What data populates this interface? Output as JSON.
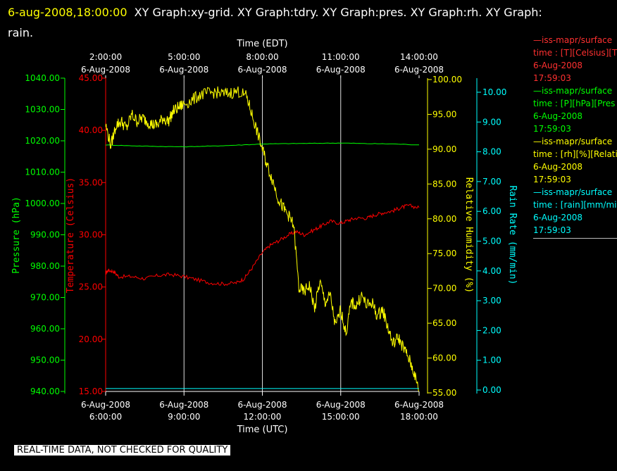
{
  "header": {
    "date": "6-aug-2008,18:00:00",
    "graphs_line1": "XY Graph:xy-grid.  XY Graph:tdry.  XY Graph:pres.  XY Graph:rh.  XY Graph:",
    "graphs_line2": "rain."
  },
  "notice": "REAL-TIME DATA, NOT CHECKED FOR QUALITY",
  "colors": {
    "temperature": "#ff0000",
    "pressure": "#00ff00",
    "humidity": "#ffff00",
    "rain": "#00ffff",
    "grid": "#dddddd"
  },
  "legend": [
    {
      "color": "#ff3030",
      "rule": "—iss-mapr/surface",
      "field": "time : [T][Celsius][T",
      "date": "6-Aug-2008",
      "time": "17:59:03"
    },
    {
      "color": "#00ff00",
      "rule": "—iss-mapr/surface",
      "field": "time : [P][hPa][Pres",
      "date": "6-Aug-2008",
      "time": "17:59:03"
    },
    {
      "color": "#ffff00",
      "rule": "—iss-mapr/surface",
      "field": "time : [rh][%][Relati",
      "date": "6-Aug-2008",
      "time": "17:59:03"
    },
    {
      "color": "#00ffff",
      "rule": "—iss-mapr/surface",
      "field": "time : [rain][mm/min",
      "date": "6-Aug-2008",
      "time": "17:59:03"
    }
  ],
  "chart_data": {
    "type": "line",
    "x_top": {
      "label": "Time (EDT)",
      "ticks": [
        {
          "time": "2:00:00",
          "date": "6-Aug-2008"
        },
        {
          "time": "5:00:00",
          "date": "6-Aug-2008"
        },
        {
          "time": "8:00:00",
          "date": "6-Aug-2008"
        },
        {
          "time": "11:00:00",
          "date": "6-Aug-2008"
        },
        {
          "time": "14:00:00",
          "date": "6-Aug-2008"
        }
      ]
    },
    "x_bottom": {
      "label": "Time (UTC)",
      "range_hours": [
        6,
        18
      ],
      "ticks": [
        {
          "date": "6-Aug-2008",
          "time": "6:00:00"
        },
        {
          "date": "6-Aug-2008",
          "time": "9:00:00"
        },
        {
          "date": "6-Aug-2008",
          "time": "12:00:00"
        },
        {
          "date": "6-Aug-2008",
          "time": "15:00:00"
        },
        {
          "date": "6-Aug-2008",
          "time": "18:00:00"
        }
      ]
    },
    "axes": {
      "pressure": {
        "label": "Pressure (hPa)",
        "ylim": [
          940,
          1040
        ],
        "ticks": [
          "940.00",
          "950.00",
          "960.00",
          "970.00",
          "980.00",
          "990.00",
          "1000.00",
          "1010.00",
          "1020.00",
          "1030.00",
          "1040.00"
        ]
      },
      "temperature": {
        "label": "Temperature (Celsius)",
        "ylim": [
          15,
          45
        ],
        "ticks": [
          "15.00",
          "20.00",
          "25.00",
          "30.00",
          "35.00",
          "40.00",
          "45.00"
        ]
      },
      "humidity": {
        "label": "Relative Humidity (%)",
        "ylim": [
          55,
          100
        ],
        "ticks": [
          "55.00",
          "60.00",
          "65.00",
          "70.00",
          "75.00",
          "80.00",
          "85.00",
          "90.00",
          "95.00",
          "100.00"
        ]
      },
      "rain": {
        "label": "Rain Rate (mm/min)",
        "ylim": [
          0,
          10
        ],
        "ticks": [
          "0.00",
          "1.00",
          "2.00",
          "3.00",
          "4.00",
          "5.00",
          "6.00",
          "7.00",
          "8.00",
          "9.00",
          "10.00"
        ]
      }
    },
    "grid": true,
    "series": [
      {
        "axis": "temperature",
        "x": [
          6.0,
          6.1,
          6.3,
          6.5,
          7.0,
          7.5,
          8.0,
          8.5,
          9.0,
          9.5,
          10.0,
          10.5,
          11.0,
          11.3,
          11.6,
          12.0,
          12.3,
          12.6,
          13.0,
          13.3,
          13.6,
          14.0,
          14.3,
          14.6,
          15.0,
          15.3,
          15.6,
          16.0,
          16.3,
          16.6,
          17.0,
          17.3,
          17.6,
          18.0
        ],
        "y": [
          26.3,
          26.6,
          26.5,
          26.0,
          26.0,
          25.8,
          26.1,
          26.2,
          26.0,
          25.7,
          25.4,
          25.3,
          25.4,
          25.8,
          26.8,
          28.3,
          29.0,
          29.4,
          30.0,
          30.3,
          30.0,
          30.5,
          30.9,
          31.3,
          31.1,
          31.4,
          31.6,
          31.6,
          31.9,
          32.1,
          32.3,
          32.6,
          32.8,
          32.6
        ]
      },
      {
        "axis": "pressure",
        "x": [
          6.0,
          7.0,
          8.0,
          9.0,
          10.0,
          11.0,
          12.0,
          13.0,
          14.0,
          15.0,
          16.0,
          17.0,
          18.0
        ],
        "y": [
          1018.7,
          1018.4,
          1018.2,
          1018.1,
          1018.3,
          1018.6,
          1019.0,
          1019.1,
          1019.2,
          1019.3,
          1019.1,
          1019.0,
          1018.7
        ]
      },
      {
        "axis": "humidity",
        "x": [
          6.0,
          6.2,
          6.4,
          6.6,
          6.8,
          7.0,
          7.2,
          7.4,
          7.6,
          7.8,
          8.0,
          8.2,
          8.4,
          8.6,
          8.8,
          9.0,
          9.3,
          9.6,
          9.9,
          10.2,
          10.5,
          10.8,
          11.1,
          11.4,
          11.6,
          11.8,
          12.0,
          12.2,
          12.4,
          12.6,
          12.8,
          13.0,
          13.2,
          13.4,
          13.6,
          13.8,
          14.0,
          14.2,
          14.4,
          14.6,
          14.8,
          15.0,
          15.2,
          15.4,
          15.6,
          15.8,
          16.0,
          16.2,
          16.4,
          16.6,
          16.8,
          17.0,
          17.2,
          17.4,
          17.6,
          17.8,
          18.0
        ],
        "y": [
          93.5,
          90.5,
          93.5,
          94.0,
          93.0,
          95.0,
          94.0,
          94.5,
          94.0,
          93.5,
          93.5,
          94.5,
          94.0,
          95.5,
          96.0,
          96.5,
          97.0,
          97.8,
          98.0,
          98.2,
          97.9,
          98.1,
          98.3,
          97.5,
          95.0,
          92.5,
          90.0,
          87.5,
          85.5,
          83.0,
          81.5,
          80.5,
          79.0,
          70.0,
          69.5,
          70.5,
          67.0,
          71.0,
          68.0,
          69.0,
          64.5,
          67.0,
          63.5,
          68.0,
          67.5,
          69.0,
          67.5,
          68.0,
          66.0,
          67.0,
          64.5,
          62.0,
          63.0,
          61.5,
          60.0,
          58.0,
          55.2
        ]
      },
      {
        "axis": "rain",
        "x": [
          6.0,
          18.0
        ],
        "y": [
          0.05,
          0.05
        ]
      }
    ]
  }
}
